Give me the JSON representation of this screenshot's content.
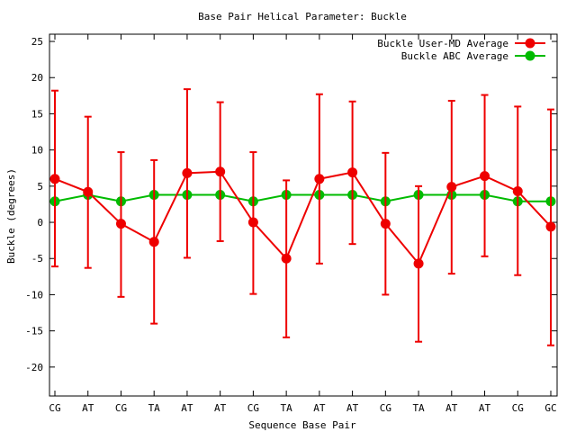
{
  "chart_data": {
    "type": "line",
    "title": "Base Pair Helical Parameter: Buckle",
    "xlabel": "Sequence Base Pair",
    "ylabel": "Buckle (degrees)",
    "categories": [
      "CG",
      "AT",
      "CG",
      "TA",
      "AT",
      "AT",
      "CG",
      "TA",
      "AT",
      "AT",
      "CG",
      "TA",
      "AT",
      "AT",
      "CG",
      "GC"
    ],
    "ylim": [
      -24,
      26
    ],
    "yticks": [
      -20,
      -15,
      -10,
      -5,
      0,
      5,
      10,
      15,
      20,
      25
    ],
    "legend_position": "top-right",
    "grid": false,
    "series": [
      {
        "name": "Buckle User-MD Average",
        "color": "#ee0000",
        "values": [
          6.0,
          4.2,
          -0.2,
          -2.7,
          6.8,
          7.0,
          0.0,
          -5.0,
          6.0,
          6.9,
          -0.2,
          -5.7,
          4.9,
          6.4,
          4.3,
          -0.6
        ],
        "err_low": [
          -6.1,
          -6.3,
          -10.3,
          -14.0,
          -4.9,
          -2.6,
          -9.9,
          -15.9,
          -5.7,
          -3.0,
          -10.0,
          -16.5,
          -7.1,
          -4.7,
          -7.3,
          -17.0
        ],
        "err_high": [
          18.2,
          14.6,
          9.7,
          8.6,
          18.4,
          16.6,
          9.7,
          5.8,
          17.7,
          16.7,
          9.6,
          5.0,
          16.8,
          17.6,
          16.0,
          15.6
        ]
      },
      {
        "name": "Buckle ABC Average",
        "color": "#00bb00",
        "values": [
          2.9,
          3.8,
          2.9,
          3.8,
          3.8,
          3.8,
          2.9,
          3.8,
          3.8,
          3.8,
          2.9,
          3.8,
          3.8,
          3.8,
          2.9,
          2.9
        ]
      }
    ]
  }
}
